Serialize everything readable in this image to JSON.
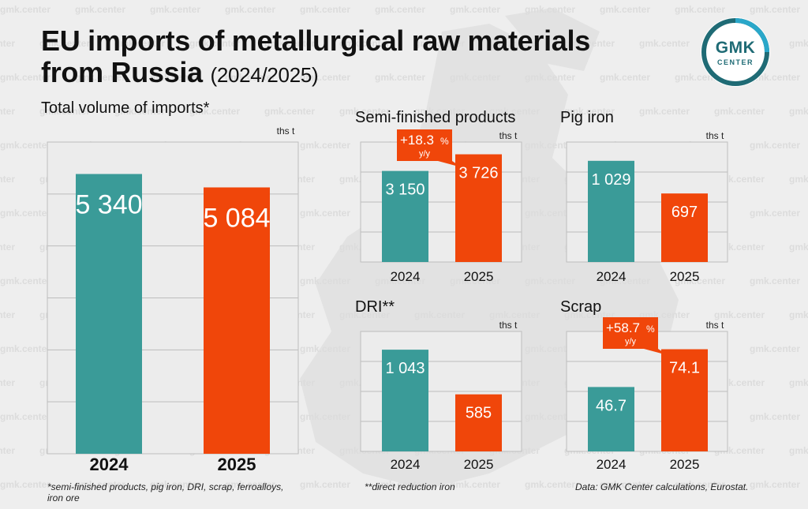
{
  "header": {
    "title_line1": "EU imports of metallurgical raw materials",
    "title_line2": "from Russia",
    "title_years": "(2024/2025)"
  },
  "logo": {
    "text_main": "GMK",
    "text_sub": "CENTER"
  },
  "watermark": "gmk.center",
  "colors": {
    "teal": "#3a9b98",
    "orange": "#f0460a",
    "gridline": "#bdbdbd",
    "panel_bg": "#ececec",
    "logo_teal": "#1f6b75",
    "logo_blue": "#2aa7c9"
  },
  "chart_data": [
    {
      "id": "total",
      "type": "bar",
      "title": "Total volume of imports*",
      "unit": "ths t",
      "categories": [
        "2024",
        "2025"
      ],
      "values": [
        5340,
        5084
      ],
      "value_labels": [
        "5 340",
        "5 084"
      ],
      "ylim": [
        0,
        5950
      ],
      "grid": true
    },
    {
      "id": "semi",
      "type": "bar",
      "title": "Semi-finished products",
      "unit": "ths t",
      "categories": [
        "2024",
        "2025"
      ],
      "values": [
        3150,
        3726
      ],
      "value_labels": [
        "3 150",
        "3 726"
      ],
      "ylim": [
        0,
        4150
      ],
      "grid": true,
      "annotation": {
        "value": "+18.3",
        "unit": "%",
        "sub": "y/y"
      }
    },
    {
      "id": "pig",
      "type": "bar",
      "title": "Pig iron",
      "unit": "ths t",
      "categories": [
        "2024",
        "2025"
      ],
      "values": [
        1029,
        697
      ],
      "value_labels": [
        "1 029",
        "697"
      ],
      "ylim": [
        0,
        1220
      ],
      "grid": true
    },
    {
      "id": "dri",
      "type": "bar",
      "title": "DRI**",
      "unit": "ths t",
      "categories": [
        "2024",
        "2025"
      ],
      "values": [
        1043,
        585
      ],
      "value_labels": [
        "1 043",
        "585"
      ],
      "ylim": [
        0,
        1230
      ],
      "grid": true
    },
    {
      "id": "scrap",
      "type": "bar",
      "title": "Scrap",
      "unit": "ths t",
      "categories": [
        "2024",
        "2025"
      ],
      "values": [
        46.7,
        74.1
      ],
      "value_labels": [
        "46.7",
        "74.1"
      ],
      "ylim": [
        0,
        87
      ],
      "grid": true,
      "annotation": {
        "value": "+58.7",
        "unit": "%",
        "sub": "y/y"
      }
    }
  ],
  "footnotes": {
    "left_line1": "*semi-finished products, pig iron, DRI, scrap, ferroalloys,",
    "left_line2": "iron ore",
    "middle": "**direct reduction iron",
    "source": "Data: GMK Center calculations, Eurostat."
  }
}
